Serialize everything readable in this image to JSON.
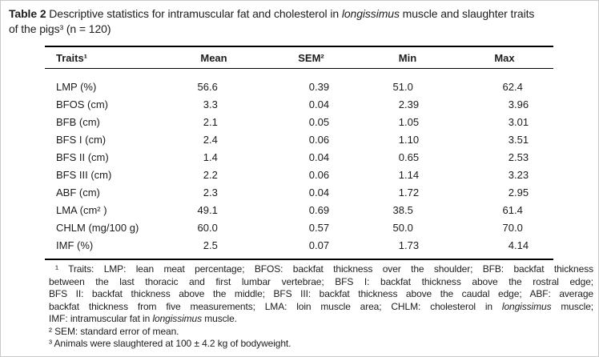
{
  "colors": {
    "background": "#ffffff",
    "text": "#1c1c1c",
    "table_rule": "#000000",
    "page_border": "#c9c9c9"
  },
  "title": {
    "lines": [
      [
        {
          "t": "Table 2 ",
          "b": 1
        },
        {
          "t": "Descriptive statistics for intramuscular fat and cholesterol in "
        },
        {
          "t": "longissimus",
          "i": 1
        },
        {
          "t": " muscle and slaughter traits"
        }
      ],
      [
        {
          "t": "of the pigs³ (n = 120)"
        }
      ]
    ]
  },
  "table": {
    "headers": [
      "Traits¹",
      "Mean",
      "SEM²",
      "Min",
      "Max"
    ],
    "rows": [
      [
        "LMP (%)",
        "56.6",
        "0.39",
        "51.0",
        "62.4"
      ],
      [
        "BFOS (cm)",
        "3.3",
        "0.04",
        "2.39",
        "3.96"
      ],
      [
        "BFB (cm)",
        "2.1",
        "0.05",
        "1.05",
        "3.01"
      ],
      [
        "BFS I (cm)",
        "2.4",
        "0.06",
        "1.10",
        "3.51"
      ],
      [
        "BFS II (cm)",
        "1.4",
        "0.04",
        "0.65",
        "2.53"
      ],
      [
        "BFS III (cm)",
        "2.2",
        "0.06",
        "1.14",
        "3.23"
      ],
      [
        "ABF (cm)",
        "2.3",
        "0.04",
        "1.72",
        "2.95"
      ],
      [
        "LMA (cm² )",
        "49.1",
        "0.69",
        "38.5",
        "61.4"
      ],
      [
        "CHLM (mg/100 g)",
        "60.0",
        "0.57",
        "50.0",
        "70.0"
      ],
      [
        "IMF (%)",
        "2.5",
        "0.07",
        "1.73",
        "4.14"
      ]
    ]
  },
  "footnotes": {
    "lines": [
      [
        {
          "t": "¹ Traits: LMP: lean meat percentage; BFOS: backfat thickness over the shoulder; BFB: backfat thickness"
        }
      ],
      [
        {
          "t": "between the last thoracic and first lumbar vertebrae; BFS I: backfat thickness above the rostral edge;"
        }
      ],
      [
        {
          "t": "BFS II: backfat thickness above the middle; BFS III: backfat thickness above the caudal edge; ABF: average"
        }
      ],
      [
        {
          "t": "backfat thickness from five measurements; LMA: loin muscle area; CHLM: cholesterol in "
        },
        {
          "t": "longissimus",
          "i": 1
        },
        {
          "t": " muscle;"
        }
      ],
      [
        {
          "t": "IMF: intramuscular fat in "
        },
        {
          "t": "longissimus",
          "i": 1
        },
        {
          "t": " muscle."
        }
      ],
      [
        {
          "t": "² SEM: standard error of mean."
        }
      ],
      [
        {
          "t": "³ Animals were slaughtered at 100 ± 4.2 kg of bodyweight."
        }
      ]
    ]
  }
}
